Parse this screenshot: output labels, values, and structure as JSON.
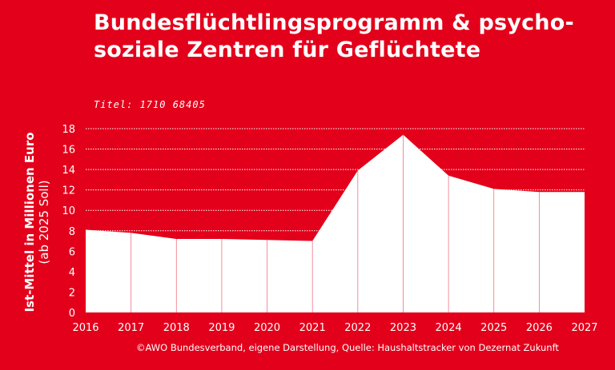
{
  "title": "Bundesflüchtlingsprogramm & psycho-soziale Zentren für Geflüchtete",
  "subtitle": "Titel: 1710 68405",
  "source": "©AWO Bundesverband, eigene Darstellung, Quelle: Haushaltstracker von Dezernat Zukunft",
  "colors": {
    "background": "#e3001b",
    "area": "#ffffff",
    "grid": "#ffffff",
    "divider": "#e3001b"
  },
  "chart_data": {
    "type": "area",
    "title": "Bundesflüchtlingsprogramm & psycho-soziale Zentren für Geflüchtete",
    "subtitle": "Titel: 1710 68405",
    "ylabel_line1": "Ist-Mittel in Millionen Euro",
    "ylabel_line2": "(ab 2025 Soll)",
    "xlabel": "",
    "x": [
      "2016",
      "2017",
      "2018",
      "2019",
      "2020",
      "2021",
      "2022",
      "2023",
      "2024",
      "2025",
      "2026",
      "2027"
    ],
    "values": [
      8.1,
      7.8,
      7.2,
      7.2,
      7.1,
      7.0,
      13.9,
      17.4,
      13.4,
      12.1,
      11.8,
      11.8
    ],
    "ylim": [
      0,
      18
    ],
    "yticks": [
      "0",
      "2",
      "4",
      "6",
      "8",
      "10",
      "12",
      "14",
      "16",
      "18"
    ],
    "grid": true,
    "legend": "none"
  }
}
